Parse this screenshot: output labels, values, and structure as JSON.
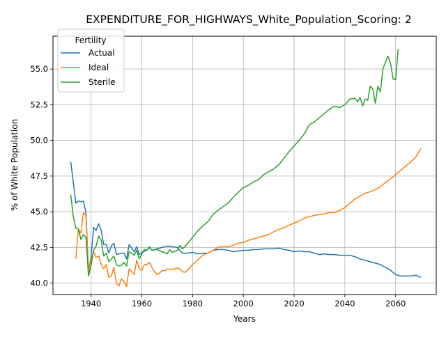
{
  "chart_data": {
    "type": "line",
    "title": "EXPENDITURE_FOR_HIGHWAYS_White_Population_Scoring: 2",
    "xlabel": "Years",
    "ylabel": "% of White Population",
    "xlim": [
      1925,
      2076
    ],
    "ylim": [
      39.2,
      57.3
    ],
    "x_ticks": [
      1940,
      1960,
      1980,
      2000,
      2020,
      2040,
      2060
    ],
    "y_ticks": [
      40.0,
      42.5,
      45.0,
      47.5,
      50.0,
      52.5,
      55.0
    ],
    "grid": true,
    "legend": {
      "title": "Fertility",
      "position": "upper left",
      "entries": [
        "Actual",
        "Ideal",
        "Sterile"
      ]
    },
    "series": [
      {
        "name": "Actual",
        "color": "#1f77b4",
        "points": [
          [
            1932,
            48.5
          ],
          [
            1933,
            47.1
          ],
          [
            1934,
            45.6
          ],
          [
            1935,
            45.75
          ],
          [
            1936,
            45.7
          ],
          [
            1937,
            45.75
          ],
          [
            1938,
            44.9
          ],
          [
            1939,
            40.8
          ],
          [
            1940,
            41.8
          ],
          [
            1941,
            43.9
          ],
          [
            1942,
            43.7
          ],
          [
            1943,
            44.15
          ],
          [
            1944,
            43.7
          ],
          [
            1945,
            42.7
          ],
          [
            1946,
            42.7
          ],
          [
            1947,
            42.1
          ],
          [
            1948,
            42.6
          ],
          [
            1949,
            42.8
          ],
          [
            1950,
            42.0
          ],
          [
            1952,
            42.1
          ],
          [
            1953,
            42.1
          ],
          [
            1954,
            41.7
          ],
          [
            1955,
            42.7
          ],
          [
            1957,
            42.2
          ],
          [
            1958,
            42.55
          ],
          [
            1959,
            42.0
          ],
          [
            1960,
            42.15
          ],
          [
            1962,
            42.3
          ],
          [
            1963,
            42.5
          ],
          [
            1964,
            42.3
          ],
          [
            1966,
            42.4
          ],
          [
            1968,
            42.5
          ],
          [
            1970,
            42.6
          ],
          [
            1972,
            42.55
          ],
          [
            1974,
            42.5
          ],
          [
            1976,
            42.1
          ],
          [
            1978,
            42.1
          ],
          [
            1980,
            42.15
          ],
          [
            1982,
            42.05
          ],
          [
            1984,
            42.1
          ],
          [
            1986,
            42.1
          ],
          [
            1988,
            42.3
          ],
          [
            1990,
            42.35
          ],
          [
            1992,
            42.35
          ],
          [
            1994,
            42.3
          ],
          [
            1996,
            42.2
          ],
          [
            1998,
            42.25
          ],
          [
            2000,
            42.3
          ],
          [
            2002,
            42.3
          ],
          [
            2004,
            42.35
          ],
          [
            2006,
            42.35
          ],
          [
            2008,
            42.4
          ],
          [
            2010,
            42.4
          ],
          [
            2012,
            42.4
          ],
          [
            2014,
            42.45
          ],
          [
            2016,
            42.35
          ],
          [
            2018,
            42.3
          ],
          [
            2020,
            42.2
          ],
          [
            2022,
            42.25
          ],
          [
            2024,
            42.2
          ],
          [
            2026,
            42.2
          ],
          [
            2028,
            42.1
          ],
          [
            2030,
            42.0
          ],
          [
            2032,
            42.05
          ],
          [
            2034,
            42.0
          ],
          [
            2036,
            42.0
          ],
          [
            2038,
            41.95
          ],
          [
            2040,
            41.95
          ],
          [
            2042,
            41.95
          ],
          [
            2044,
            41.85
          ],
          [
            2046,
            41.7
          ],
          [
            2048,
            41.6
          ],
          [
            2050,
            41.5
          ],
          [
            2052,
            41.4
          ],
          [
            2054,
            41.3
          ],
          [
            2056,
            41.1
          ],
          [
            2058,
            40.9
          ],
          [
            2060,
            40.6
          ],
          [
            2062,
            40.5
          ],
          [
            2064,
            40.5
          ],
          [
            2066,
            40.5
          ],
          [
            2068,
            40.55
          ],
          [
            2070,
            40.4
          ]
        ]
      },
      {
        "name": "Ideal",
        "color": "#ff7f0e",
        "points": [
          [
            1934,
            41.7
          ],
          [
            1935,
            43.8
          ],
          [
            1936,
            43.5
          ],
          [
            1937,
            44.95
          ],
          [
            1938,
            44.7
          ],
          [
            1939,
            40.8
          ],
          [
            1940,
            41.6
          ],
          [
            1941,
            42.2
          ],
          [
            1942,
            41.8
          ],
          [
            1943,
            41.9
          ],
          [
            1944,
            41.3
          ],
          [
            1945,
            41.0
          ],
          [
            1946,
            41.3
          ],
          [
            1947,
            40.4
          ],
          [
            1948,
            40.5
          ],
          [
            1949,
            41.1
          ],
          [
            1950,
            40.0
          ],
          [
            1951,
            39.8
          ],
          [
            1952,
            40.3
          ],
          [
            1953,
            40.1
          ],
          [
            1954,
            39.75
          ],
          [
            1955,
            41.0
          ],
          [
            1956,
            40.8
          ],
          [
            1957,
            40.6
          ],
          [
            1958,
            41.6
          ],
          [
            1959,
            41.0
          ],
          [
            1960,
            40.9
          ],
          [
            1961,
            41.3
          ],
          [
            1962,
            41.3
          ],
          [
            1963,
            41.45
          ],
          [
            1964,
            41.1
          ],
          [
            1965,
            40.8
          ],
          [
            1966,
            40.6
          ],
          [
            1967,
            40.7
          ],
          [
            1968,
            40.9
          ],
          [
            1969,
            40.85
          ],
          [
            1970,
            41.0
          ],
          [
            1972,
            40.95
          ],
          [
            1974,
            41.05
          ],
          [
            1975,
            41.0
          ],
          [
            1976,
            40.8
          ],
          [
            1977,
            40.75
          ],
          [
            1978,
            40.9
          ],
          [
            1980,
            41.3
          ],
          [
            1982,
            41.6
          ],
          [
            1984,
            41.95
          ],
          [
            1986,
            42.1
          ],
          [
            1988,
            42.3
          ],
          [
            1990,
            42.5
          ],
          [
            1992,
            42.55
          ],
          [
            1994,
            42.55
          ],
          [
            1996,
            42.65
          ],
          [
            1998,
            42.8
          ],
          [
            2000,
            42.85
          ],
          [
            2002,
            43.0
          ],
          [
            2004,
            43.1
          ],
          [
            2006,
            43.2
          ],
          [
            2008,
            43.3
          ],
          [
            2010,
            43.4
          ],
          [
            2012,
            43.6
          ],
          [
            2014,
            43.75
          ],
          [
            2016,
            43.9
          ],
          [
            2018,
            44.05
          ],
          [
            2020,
            44.2
          ],
          [
            2022,
            44.35
          ],
          [
            2024,
            44.55
          ],
          [
            2026,
            44.65
          ],
          [
            2028,
            44.75
          ],
          [
            2030,
            44.8
          ],
          [
            2032,
            44.85
          ],
          [
            2034,
            44.95
          ],
          [
            2036,
            44.95
          ],
          [
            2038,
            45.1
          ],
          [
            2040,
            45.3
          ],
          [
            2042,
            45.6
          ],
          [
            2044,
            45.9
          ],
          [
            2046,
            46.1
          ],
          [
            2048,
            46.3
          ],
          [
            2050,
            46.4
          ],
          [
            2052,
            46.55
          ],
          [
            2054,
            46.75
          ],
          [
            2056,
            47.05
          ],
          [
            2058,
            47.3
          ],
          [
            2060,
            47.6
          ],
          [
            2062,
            47.9
          ],
          [
            2064,
            48.2
          ],
          [
            2066,
            48.5
          ],
          [
            2068,
            48.85
          ],
          [
            2070,
            49.45
          ]
        ]
      },
      {
        "name": "Sterile",
        "color": "#2ca02c",
        "points": [
          [
            1932,
            46.2
          ],
          [
            1933,
            44.7
          ],
          [
            1934,
            43.85
          ],
          [
            1935,
            43.8
          ],
          [
            1936,
            43.05
          ],
          [
            1937,
            43.4
          ],
          [
            1938,
            43.2
          ],
          [
            1939,
            40.5
          ],
          [
            1940,
            41.2
          ],
          [
            1941,
            42.3
          ],
          [
            1942,
            42.6
          ],
          [
            1943,
            43.3
          ],
          [
            1944,
            43.0
          ],
          [
            1945,
            41.9
          ],
          [
            1946,
            42.1
          ],
          [
            1947,
            41.5
          ],
          [
            1948,
            41.7
          ],
          [
            1949,
            41.9
          ],
          [
            1950,
            41.3
          ],
          [
            1951,
            41.2
          ],
          [
            1952,
            41.25
          ],
          [
            1953,
            41.45
          ],
          [
            1954,
            41.2
          ],
          [
            1955,
            42.2
          ],
          [
            1956,
            42.1
          ],
          [
            1957,
            41.95
          ],
          [
            1958,
            42.3
          ],
          [
            1959,
            41.7
          ],
          [
            1960,
            42.05
          ],
          [
            1961,
            42.35
          ],
          [
            1962,
            42.3
          ],
          [
            1963,
            42.55
          ],
          [
            1964,
            42.3
          ],
          [
            1966,
            42.35
          ],
          [
            1968,
            42.2
          ],
          [
            1970,
            42.05
          ],
          [
            1971,
            42.35
          ],
          [
            1972,
            42.15
          ],
          [
            1974,
            42.3
          ],
          [
            1975,
            42.65
          ],
          [
            1976,
            42.4
          ],
          [
            1978,
            42.75
          ],
          [
            1980,
            43.2
          ],
          [
            1982,
            43.65
          ],
          [
            1984,
            44.0
          ],
          [
            1986,
            44.3
          ],
          [
            1988,
            44.8
          ],
          [
            1990,
            45.1
          ],
          [
            1992,
            45.35
          ],
          [
            1994,
            45.6
          ],
          [
            1996,
            46.0
          ],
          [
            1998,
            46.35
          ],
          [
            2000,
            46.7
          ],
          [
            2002,
            46.85
          ],
          [
            2004,
            47.1
          ],
          [
            2006,
            47.25
          ],
          [
            2008,
            47.6
          ],
          [
            2010,
            47.8
          ],
          [
            2012,
            48.0
          ],
          [
            2014,
            48.3
          ],
          [
            2016,
            48.75
          ],
          [
            2018,
            49.2
          ],
          [
            2020,
            49.6
          ],
          [
            2022,
            50.0
          ],
          [
            2024,
            50.45
          ],
          [
            2026,
            51.1
          ],
          [
            2028,
            51.3
          ],
          [
            2030,
            51.6
          ],
          [
            2032,
            51.9
          ],
          [
            2034,
            52.2
          ],
          [
            2036,
            52.4
          ],
          [
            2038,
            52.3
          ],
          [
            2040,
            52.5
          ],
          [
            2042,
            52.9
          ],
          [
            2044,
            52.95
          ],
          [
            2045,
            52.7
          ],
          [
            2046,
            53.0
          ],
          [
            2047,
            52.4
          ],
          [
            2048,
            52.9
          ],
          [
            2049,
            52.8
          ],
          [
            2050,
            53.8
          ],
          [
            2051,
            53.6
          ],
          [
            2052,
            52.6
          ],
          [
            2053,
            53.8
          ],
          [
            2054,
            53.4
          ],
          [
            2055,
            55.0
          ],
          [
            2056,
            55.5
          ],
          [
            2057,
            55.9
          ],
          [
            2058,
            55.4
          ],
          [
            2059,
            54.3
          ],
          [
            2060,
            54.25
          ],
          [
            2061,
            56.4
          ]
        ]
      }
    ]
  }
}
